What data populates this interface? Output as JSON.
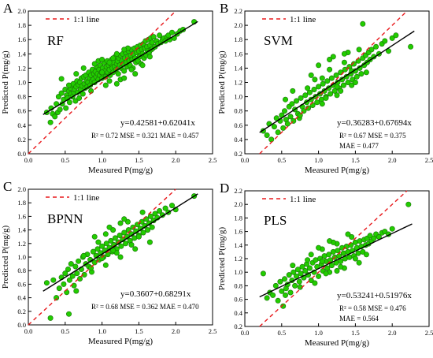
{
  "figure": {
    "point_color": "#22cc00",
    "point_edge_color": "#1a6e0a",
    "fit_line_color": "#000000",
    "identity_line_color": "#e8191c"
  },
  "chart_data": [
    {
      "type": "scatter",
      "panel_letter": "A",
      "model_label": "RF",
      "legend_label": "1:1 line",
      "legend_position": "top-left",
      "xlabel": "Measured P(mg/g)",
      "ylabel": "Predicted P(mg/g)",
      "xlim": [
        0,
        2.5
      ],
      "ylim": [
        0,
        2.0
      ],
      "xticks": [
        "0.0",
        "0.5",
        "1.0",
        "1.5",
        "2.0",
        "2.5"
      ],
      "yticks": [
        "0.0",
        "0.2",
        "0.4",
        "0.6",
        "0.8",
        "1.0",
        "1.2",
        "1.4",
        "1.6",
        "1.8",
        "2.0"
      ],
      "equation": "y=0.42581+0.62041x",
      "fit": {
        "intercept": 0.42581,
        "slope": 0.62041
      },
      "metrics": [
        "R² = 0.72 MSE = 0.321 MAE = 0.457"
      ],
      "x": [
        0.25,
        0.3,
        0.31,
        0.33,
        0.36,
        0.38,
        0.4,
        0.41,
        0.43,
        0.45,
        0.46,
        0.48,
        0.5,
        0.51,
        0.52,
        0.53,
        0.55,
        0.56,
        0.57,
        0.58,
        0.59,
        0.6,
        0.61,
        0.62,
        0.63,
        0.64,
        0.65,
        0.66,
        0.67,
        0.68,
        0.69,
        0.7,
        0.71,
        0.72,
        0.73,
        0.74,
        0.75,
        0.76,
        0.77,
        0.78,
        0.79,
        0.8,
        0.81,
        0.82,
        0.83,
        0.84,
        0.85,
        0.86,
        0.87,
        0.88,
        0.89,
        0.9,
        0.91,
        0.92,
        0.93,
        0.94,
        0.95,
        0.96,
        0.97,
        0.98,
        0.99,
        1.0,
        1.01,
        1.02,
        1.03,
        1.04,
        1.05,
        1.06,
        1.07,
        1.08,
        1.09,
        1.1,
        1.11,
        1.12,
        1.13,
        1.14,
        1.15,
        1.16,
        1.17,
        1.18,
        1.19,
        1.2,
        1.21,
        1.22,
        1.23,
        1.24,
        1.25,
        1.26,
        1.27,
        1.28,
        1.29,
        1.3,
        1.31,
        1.32,
        1.33,
        1.34,
        1.35,
        1.36,
        1.37,
        1.38,
        1.39,
        1.4,
        1.41,
        1.42,
        1.43,
        1.44,
        1.45,
        1.46,
        1.47,
        1.48,
        1.49,
        1.5,
        1.51,
        1.52,
        1.53,
        1.54,
        1.55,
        1.56,
        1.57,
        1.58,
        1.59,
        1.6,
        1.61,
        1.62,
        1.63,
        1.64,
        1.65,
        1.66,
        1.67,
        1.68,
        1.69,
        1.7,
        1.72,
        1.74,
        1.76,
        1.78,
        1.8,
        1.82,
        1.84,
        1.86,
        1.88,
        1.9,
        1.92,
        1.95,
        1.98,
        2.02,
        2.06,
        2.1,
        2.25,
        0.45,
        0.55,
        0.65,
        0.75,
        0.85,
        0.95,
        1.05,
        1.15,
        1.25,
        1.35,
        1.45,
        1.55,
        1.65,
        0.9,
        1.0,
        1.1,
        1.2,
        1.3,
        1.4,
        1.0,
        1.1,
        1.2,
        1.3
      ],
      "y": [
        0.58,
        0.44,
        0.64,
        0.56,
        0.52,
        0.7,
        0.58,
        0.8,
        0.62,
        0.85,
        0.7,
        0.76,
        0.9,
        0.64,
        0.82,
        0.78,
        0.88,
        0.72,
        0.92,
        0.84,
        0.96,
        0.8,
        0.98,
        0.86,
        0.9,
        0.74,
        0.94,
        1.02,
        0.86,
        0.97,
        0.78,
        1.0,
        0.9,
        1.06,
        0.95,
        0.84,
        1.08,
        0.98,
        0.92,
        1.1,
        1.02,
        0.94,
        1.0,
        1.14,
        1.06,
        0.96,
        1.1,
        1.02,
        1.18,
        1.04,
        1.12,
        1.0,
        1.15,
        1.08,
        1.22,
        1.12,
        1.04,
        1.18,
        1.1,
        1.24,
        1.14,
        1.06,
        1.2,
        1.12,
        1.28,
        1.16,
        1.08,
        1.22,
        1.3,
        1.14,
        1.24,
        1.18,
        1.1,
        1.26,
        1.32,
        1.2,
        1.14,
        1.28,
        1.22,
        1.36,
        1.18,
        1.26,
        1.3,
        1.12,
        1.34,
        1.24,
        1.38,
        1.2,
        1.3,
        1.4,
        1.26,
        1.16,
        1.34,
        1.42,
        1.28,
        1.22,
        1.36,
        1.44,
        1.3,
        1.24,
        1.38,
        1.46,
        1.32,
        1.2,
        1.4,
        1.48,
        1.34,
        1.28,
        1.42,
        1.5,
        1.3,
        1.44,
        1.36,
        1.52,
        1.26,
        1.46,
        1.4,
        1.54,
        1.34,
        1.48,
        1.58,
        1.38,
        1.5,
        1.44,
        1.6,
        1.42,
        1.52,
        1.62,
        1.46,
        1.56,
        1.48,
        1.64,
        1.5,
        1.58,
        1.54,
        1.66,
        1.56,
        1.6,
        1.62,
        1.58,
        1.64,
        1.66,
        1.6,
        1.7,
        1.62,
        1.68,
        1.72,
        1.74,
        1.85,
        1.05,
        0.96,
        1.12,
        1.2,
        0.88,
        1.3,
        0.96,
        1.34,
        1.04,
        1.48,
        1.12,
        1.24,
        1.36,
        1.26,
        1.32,
        1.02,
        1.4,
        1.06,
        1.18,
        1.14,
        1.28,
        0.98,
        1.46
      ],
      "grid": false
    },
    {
      "type": "scatter",
      "panel_letter": "B",
      "model_label": "SVM",
      "legend_label": "1:1 line",
      "legend_position": "top-left",
      "xlabel": "Measured P(mg/g)",
      "ylabel": "Predicted P(mg/g)",
      "xlim": [
        0,
        2.5
      ],
      "ylim": [
        0.2,
        2.2
      ],
      "xticks": [
        "0.0",
        "0.5",
        "1.0",
        "1.5",
        "2.0",
        "2.5"
      ],
      "yticks": [
        "0.2",
        "0.4",
        "0.6",
        "0.8",
        "1.0",
        "1.2",
        "1.4",
        "1.6",
        "1.8",
        "2.0",
        "2.2"
      ],
      "equation": "y=0.36283+0.67694x",
      "fit": {
        "intercept": 0.36283,
        "slope": 0.67694
      },
      "metrics": [
        "R² = 0.67 MSE = 0.375",
        "MAE = 0.477"
      ],
      "x": [
        0.25,
        0.3,
        0.33,
        0.36,
        0.4,
        0.43,
        0.45,
        0.48,
        0.5,
        0.52,
        0.54,
        0.56,
        0.58,
        0.6,
        0.62,
        0.64,
        0.66,
        0.68,
        0.7,
        0.72,
        0.74,
        0.76,
        0.78,
        0.8,
        0.82,
        0.84,
        0.86,
        0.88,
        0.9,
        0.92,
        0.94,
        0.96,
        0.98,
        1.0,
        1.02,
        1.04,
        1.06,
        1.08,
        1.1,
        1.12,
        1.14,
        1.16,
        1.18,
        1.2,
        1.22,
        1.24,
        1.26,
        1.28,
        1.3,
        1.32,
        1.34,
        1.36,
        1.38,
        1.4,
        1.42,
        1.44,
        1.46,
        1.48,
        1.5,
        1.52,
        1.54,
        1.56,
        1.58,
        1.6,
        1.62,
        1.64,
        1.66,
        1.68,
        1.7,
        1.72,
        1.75,
        1.78,
        1.82,
        1.86,
        1.9,
        1.95,
        2.0,
        2.05,
        2.25,
        0.55,
        0.65,
        0.75,
        0.85,
        0.95,
        1.05,
        1.15,
        1.25,
        1.35,
        1.45,
        1.55,
        1.65,
        0.9,
        1.0,
        1.1,
        1.2,
        1.3,
        1.4,
        1.5,
        1.6,
        1.05,
        1.15,
        1.25,
        1.35,
        1.45
      ],
      "y": [
        0.52,
        0.46,
        0.62,
        0.4,
        0.58,
        0.7,
        0.5,
        0.66,
        0.74,
        0.56,
        0.8,
        0.68,
        0.62,
        0.86,
        0.72,
        0.9,
        0.66,
        0.82,
        0.94,
        0.76,
        0.7,
        0.98,
        0.86,
        0.8,
        1.02,
        0.92,
        0.84,
        1.06,
        0.96,
        0.88,
        1.1,
        1.0,
        0.92,
        1.14,
        1.04,
        0.96,
        1.18,
        1.08,
        1.0,
        1.22,
        1.12,
        1.04,
        1.26,
        1.16,
        1.08,
        1.3,
        1.2,
        1.12,
        1.34,
        1.24,
        1.16,
        1.38,
        1.28,
        1.2,
        1.42,
        1.32,
        1.24,
        1.46,
        1.36,
        1.28,
        1.5,
        1.4,
        1.32,
        1.54,
        1.44,
        1.58,
        1.48,
        1.62,
        1.52,
        1.66,
        1.56,
        1.7,
        1.6,
        1.74,
        1.78,
        1.64,
        1.82,
        1.86,
        1.7,
        0.96,
        1.08,
        0.74,
        1.12,
        1.24,
        0.9,
        1.38,
        1.02,
        1.48,
        1.16,
        1.66,
        1.34,
        1.3,
        1.44,
        0.98,
        1.56,
        1.08,
        1.62,
        1.2,
        2.02,
        1.26,
        1.52,
        1.14,
        1.6,
        1.36
      ],
      "grid": false
    },
    {
      "type": "scatter",
      "panel_letter": "C",
      "model_label": "BPNN",
      "legend_label": "1:1 line",
      "legend_position": "top-left",
      "xlabel": "Measured P(mg/g)",
      "ylabel": "Predicted P(mg/g)",
      "xlim": [
        0,
        2.5
      ],
      "ylim": [
        0,
        2.0
      ],
      "xticks": [
        "0.0",
        "0.5",
        "1.0",
        "1.5",
        "2.0",
        "2.5"
      ],
      "yticks": [
        "0.0",
        "0.2",
        "0.4",
        "0.6",
        "0.8",
        "1.0",
        "1.2",
        "1.4",
        "1.6",
        "1.8",
        "2.0"
      ],
      "equation": "y=0.3607+0.68291x",
      "fit": {
        "intercept": 0.3607,
        "slope": 0.68291
      },
      "metrics": [
        "R² = 0.68 MSE = 0.362 MAE = 0.470"
      ],
      "x": [
        0.25,
        0.3,
        0.34,
        0.38,
        0.42,
        0.45,
        0.48,
        0.5,
        0.52,
        0.54,
        0.56,
        0.58,
        0.6,
        0.62,
        0.64,
        0.66,
        0.68,
        0.7,
        0.72,
        0.74,
        0.76,
        0.78,
        0.8,
        0.82,
        0.84,
        0.86,
        0.88,
        0.9,
        0.92,
        0.94,
        0.96,
        0.98,
        1.0,
        1.02,
        1.04,
        1.06,
        1.08,
        1.1,
        1.12,
        1.14,
        1.16,
        1.18,
        1.2,
        1.22,
        1.24,
        1.26,
        1.28,
        1.3,
        1.32,
        1.34,
        1.36,
        1.38,
        1.4,
        1.42,
        1.44,
        1.46,
        1.48,
        1.5,
        1.52,
        1.54,
        1.56,
        1.58,
        1.6,
        1.62,
        1.64,
        1.66,
        1.68,
        1.7,
        1.72,
        1.75,
        1.78,
        1.82,
        1.86,
        1.9,
        1.95,
        2.0,
        2.25,
        0.55,
        0.65,
        0.75,
        0.85,
        0.95,
        1.05,
        1.15,
        1.25,
        1.35,
        1.45,
        1.55,
        1.65,
        0.9,
        1.0,
        1.1,
        1.2,
        1.3,
        1.4,
        1.5,
        1.05,
        1.15,
        1.25
      ],
      "y": [
        0.62,
        0.1,
        0.66,
        0.4,
        0.54,
        0.7,
        0.6,
        0.76,
        0.48,
        0.82,
        0.66,
        0.9,
        0.72,
        0.58,
        0.86,
        0.76,
        0.94,
        0.68,
        0.82,
        1.0,
        0.74,
        0.9,
        1.04,
        0.86,
        0.96,
        0.78,
        1.08,
        0.92,
        1.02,
        1.12,
        0.96,
        1.06,
        1.16,
        1.0,
        1.1,
        1.2,
        1.04,
        1.14,
        1.24,
        1.08,
        1.18,
        1.28,
        1.12,
        1.22,
        1.32,
        1.16,
        1.26,
        1.36,
        1.2,
        1.3,
        1.4,
        1.24,
        1.34,
        1.44,
        1.28,
        1.38,
        1.48,
        1.32,
        1.42,
        1.52,
        1.36,
        1.46,
        1.56,
        1.4,
        1.5,
        1.6,
        1.44,
        1.54,
        1.64,
        1.58,
        1.68,
        1.62,
        1.72,
        1.66,
        1.76,
        1.7,
        1.9,
        0.16,
        0.5,
        1.02,
        0.84,
        1.22,
        0.88,
        1.4,
        1.0,
        1.52,
        1.12,
        1.66,
        1.22,
        1.3,
        0.98,
        1.44,
        1.06,
        1.56,
        1.18,
        1.3,
        1.34,
        1.1,
        1.5
      ],
      "grid": false
    },
    {
      "type": "scatter",
      "panel_letter": "D",
      "model_label": "PLS",
      "legend_label": "1:1 line",
      "legend_position": "top-left",
      "xlabel": "Measured P(mg/g)",
      "ylabel": "Predicted P(mg/g)",
      "xlim": [
        0,
        2.5
      ],
      "ylim": [
        0.2,
        2.2
      ],
      "xticks": [
        "0.0",
        "0.5",
        "1.0",
        "1.5",
        "2.0",
        "2.5"
      ],
      "yticks": [
        "0.2",
        "0.4",
        "0.6",
        "0.8",
        "1.0",
        "1.2",
        "1.4",
        "1.6",
        "1.8",
        "2.0",
        "2.2"
      ],
      "equation": "y=0.53241+0.51976x",
      "fit": {
        "intercept": 0.53241,
        "slope": 0.51976
      },
      "metrics": [
        "R² = 0.58 MSE = 0.476",
        "MAE = 0.564"
      ],
      "x": [
        0.25,
        0.3,
        0.34,
        0.38,
        0.42,
        0.45,
        0.48,
        0.5,
        0.52,
        0.54,
        0.56,
        0.58,
        0.6,
        0.62,
        0.64,
        0.66,
        0.68,
        0.7,
        0.72,
        0.74,
        0.76,
        0.78,
        0.8,
        0.82,
        0.84,
        0.86,
        0.88,
        0.9,
        0.92,
        0.94,
        0.96,
        0.98,
        1.0,
        1.02,
        1.04,
        1.06,
        1.08,
        1.1,
        1.12,
        1.14,
        1.16,
        1.18,
        1.2,
        1.22,
        1.24,
        1.26,
        1.28,
        1.3,
        1.32,
        1.34,
        1.36,
        1.38,
        1.4,
        1.42,
        1.44,
        1.46,
        1.48,
        1.5,
        1.52,
        1.54,
        1.56,
        1.58,
        1.6,
        1.62,
        1.64,
        1.66,
        1.68,
        1.7,
        1.72,
        1.75,
        1.78,
        1.82,
        1.86,
        1.9,
        1.95,
        2.0,
        2.22,
        0.55,
        0.65,
        0.75,
        0.85,
        0.95,
        1.05,
        1.15,
        1.25,
        1.35,
        1.45,
        1.55,
        1.65,
        0.9,
        1.0,
        1.1,
        1.2,
        1.3,
        1.4,
        1.5,
        1.05,
        1.15,
        1.25
      ],
      "y": [
        0.98,
        0.62,
        0.7,
        0.66,
        0.8,
        0.58,
        0.86,
        0.72,
        0.5,
        0.9,
        0.76,
        0.82,
        0.96,
        0.7,
        0.88,
        1.0,
        0.8,
        0.94,
        1.04,
        0.86,
        0.98,
        1.08,
        0.92,
        1.02,
        1.12,
        0.96,
        1.06,
        0.88,
        1.14,
        1.0,
        1.18,
        1.08,
        0.94,
        1.2,
        1.12,
        1.02,
        1.24,
        1.16,
        1.06,
        1.26,
        1.18,
        1.1,
        1.3,
        1.22,
        1.14,
        1.32,
        1.24,
        1.16,
        1.36,
        1.28,
        1.2,
        1.38,
        1.3,
        1.22,
        1.4,
        1.32,
        1.24,
        1.44,
        1.36,
        1.28,
        1.46,
        1.38,
        1.3,
        1.48,
        1.4,
        1.5,
        1.42,
        1.54,
        1.46,
        1.5,
        1.56,
        1.52,
        1.58,
        1.6,
        1.56,
        1.64,
        2.0,
        0.66,
        1.1,
        0.78,
        1.18,
        0.84,
        1.34,
        1.0,
        1.42,
        1.06,
        1.52,
        1.14,
        1.26,
        1.26,
        1.36,
        0.98,
        1.44,
        1.08,
        1.56,
        1.2,
        1.16,
        1.46,
        1.02
      ],
      "grid": false
    }
  ]
}
